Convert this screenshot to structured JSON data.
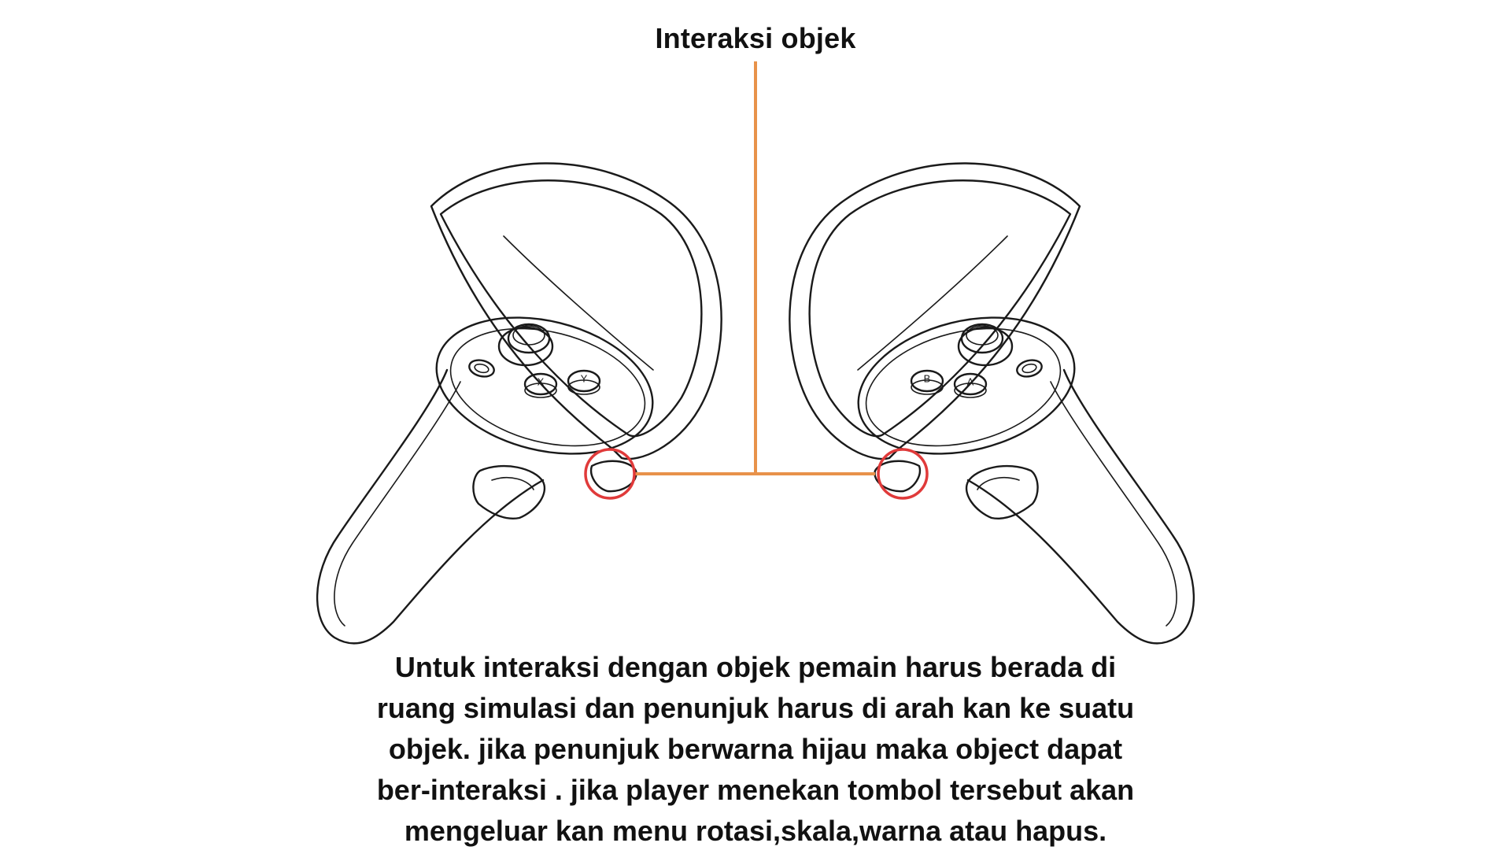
{
  "diagram": {
    "title": "Interaksi objek",
    "caption_lines": [
      "Untuk interaksi dengan objek pemain harus berada di",
      "ruang simulasi dan penunjuk harus di arah kan ke suatu",
      "objek. jika penunjuk berwarna hijau maka object dapat",
      "ber-interaksi . jika player menekan tombol tersebut akan",
      "mengeluar kan menu rotasi,skala,warna atau hapus."
    ],
    "left_controller": {
      "buttons": [
        "X",
        "Y"
      ]
    },
    "right_controller": {
      "buttons": [
        "B",
        "A"
      ]
    },
    "colors": {
      "leader_line": "#e8924a",
      "highlight_circle": "#e03a3a",
      "ink": "#1a1a1a",
      "background": "#ffffff"
    }
  }
}
